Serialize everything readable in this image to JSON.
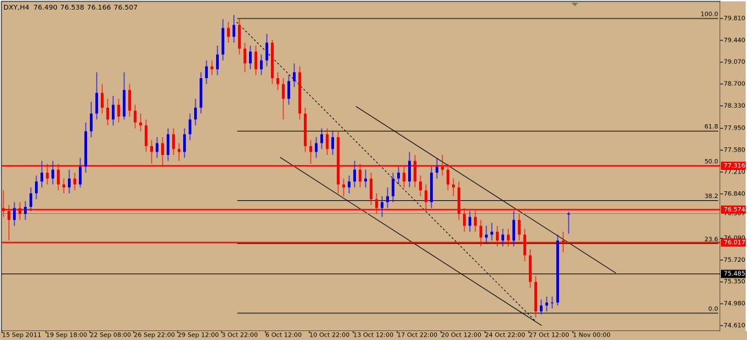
{
  "chart_data": {
    "type": "candlestick",
    "symbol": "DXY,H4",
    "last_bar_labels": [
      "76.490",
      "76.538",
      "76.166",
      "76.507"
    ],
    "background": "#d2b48c",
    "up_color": "#0000ff",
    "down_color": "#ff0000",
    "ylim": [
      74.517,
      80.065
    ],
    "yticks": [
      {
        "value": 79.81,
        "label": "79.810"
      },
      {
        "value": 79.44,
        "label": "79.440"
      },
      {
        "value": 79.07,
        "label": "79.070"
      },
      {
        "value": 78.7,
        "label": "78.700"
      },
      {
        "value": 78.33,
        "label": "78.330"
      },
      {
        "value": 77.95,
        "label": "77.950"
      },
      {
        "value": 77.58,
        "label": "77.580"
      },
      {
        "value": 77.21,
        "label": "77.210"
      },
      {
        "value": 76.84,
        "label": "76.840"
      },
      {
        "value": 76.09,
        "label": "76.090"
      },
      {
        "value": 75.72,
        "label": "75.720"
      },
      {
        "value": 75.35,
        "label": "75.350"
      },
      {
        "value": 74.98,
        "label": "74.980"
      },
      {
        "value": 74.61,
        "label": "74.610"
      }
    ],
    "x_labels": [
      "15 Sep 2011",
      "19 Sep 18:00",
      "22 Sep 08:00",
      "26 Sep 22:00",
      "29 Sep 12:00",
      "3 Oct 22:00",
      "6 Oct 12:00",
      "10 Oct 22:00",
      "13 Oct 12:00",
      "17 Oct 22:00",
      "20 Oct 12:00",
      "24 Oct 22:00",
      "27 Oct 12:00",
      "1 Nov 00:00"
    ],
    "candles": [
      [
        76.6,
        76.9,
        76.45,
        76.55
      ],
      [
        76.55,
        76.65,
        76.05,
        76.4
      ],
      [
        76.4,
        76.7,
        76.3,
        76.6
      ],
      [
        76.6,
        76.7,
        76.4,
        76.5
      ],
      [
        76.5,
        76.72,
        76.4,
        76.62
      ],
      [
        76.62,
        76.95,
        76.55,
        76.85
      ],
      [
        76.85,
        77.15,
        76.75,
        77.05
      ],
      [
        77.05,
        77.4,
        76.95,
        77.2
      ],
      [
        77.2,
        77.35,
        77.0,
        77.1
      ],
      [
        77.1,
        77.4,
        77.0,
        77.25
      ],
      [
        77.25,
        77.35,
        76.9,
        77.0
      ],
      [
        77.0,
        77.1,
        76.85,
        76.95
      ],
      [
        76.95,
        77.25,
        76.85,
        77.1
      ],
      [
        77.1,
        77.2,
        76.9,
        77.0
      ],
      [
        77.0,
        77.45,
        76.95,
        77.3
      ],
      [
        77.3,
        78.05,
        77.2,
        77.9
      ],
      [
        77.9,
        78.4,
        77.8,
        78.2
      ],
      [
        78.2,
        78.9,
        78.1,
        78.55
      ],
      [
        78.55,
        78.7,
        78.2,
        78.3
      ],
      [
        78.3,
        78.45,
        78.0,
        78.1
      ],
      [
        78.1,
        78.5,
        78.0,
        78.35
      ],
      [
        78.35,
        78.45,
        78.05,
        78.15
      ],
      [
        78.15,
        78.9,
        78.1,
        78.6
      ],
      [
        78.6,
        78.7,
        78.15,
        78.25
      ],
      [
        78.25,
        78.35,
        77.95,
        78.05
      ],
      [
        78.05,
        78.2,
        77.9,
        78.0
      ],
      [
        78.0,
        78.1,
        77.55,
        77.65
      ],
      [
        77.65,
        77.75,
        77.35,
        77.55
      ],
      [
        77.55,
        77.8,
        77.45,
        77.7
      ],
      [
        77.7,
        77.8,
        77.3,
        77.5
      ],
      [
        77.5,
        77.95,
        77.4,
        77.85
      ],
      [
        77.85,
        77.95,
        77.5,
        77.6
      ],
      [
        77.6,
        77.7,
        77.4,
        77.55
      ],
      [
        77.55,
        77.95,
        77.45,
        77.85
      ],
      [
        77.85,
        78.2,
        77.75,
        78.1
      ],
      [
        78.1,
        78.45,
        78.0,
        78.3
      ],
      [
        78.3,
        78.9,
        78.2,
        78.8
      ],
      [
        78.8,
        79.1,
        78.7,
        79.0
      ],
      [
        79.0,
        79.1,
        78.85,
        78.95
      ],
      [
        78.95,
        79.35,
        78.85,
        79.2
      ],
      [
        79.2,
        79.8,
        79.1,
        79.65
      ],
      [
        79.65,
        79.75,
        79.4,
        79.5
      ],
      [
        79.5,
        79.87,
        79.4,
        79.7
      ],
      [
        79.7,
        79.8,
        79.2,
        79.3
      ],
      [
        79.3,
        79.4,
        78.9,
        79.05
      ],
      [
        79.05,
        79.35,
        78.95,
        79.25
      ],
      [
        79.25,
        79.35,
        78.85,
        78.95
      ],
      [
        78.95,
        79.2,
        78.85,
        79.1
      ],
      [
        79.1,
        79.55,
        79.0,
        79.4
      ],
      [
        79.4,
        79.45,
        78.7,
        78.8
      ],
      [
        78.8,
        78.9,
        78.6,
        78.7
      ],
      [
        78.7,
        78.8,
        78.1,
        78.45
      ],
      [
        78.45,
        78.85,
        78.35,
        78.75
      ],
      [
        78.75,
        79.05,
        78.65,
        78.9
      ],
      [
        78.9,
        79.0,
        78.1,
        78.2
      ],
      [
        78.2,
        78.3,
        77.55,
        77.65
      ],
      [
        77.65,
        77.75,
        77.35,
        77.55
      ],
      [
        77.55,
        77.8,
        77.45,
        77.7
      ],
      [
        77.7,
        77.95,
        77.6,
        77.85
      ],
      [
        77.85,
        77.95,
        77.5,
        77.6
      ],
      [
        77.6,
        77.9,
        77.5,
        77.8
      ],
      [
        77.8,
        77.9,
        76.85,
        77.0
      ],
      [
        77.0,
        77.1,
        76.8,
        76.95
      ],
      [
        76.95,
        77.15,
        76.85,
        77.05
      ],
      [
        77.05,
        77.4,
        76.95,
        77.25
      ],
      [
        77.25,
        77.35,
        76.95,
        77.05
      ],
      [
        77.05,
        77.25,
        76.95,
        77.1
      ],
      [
        77.1,
        77.2,
        76.65,
        76.75
      ],
      [
        76.75,
        76.85,
        76.5,
        76.6
      ],
      [
        76.6,
        76.8,
        76.45,
        76.7
      ],
      [
        76.7,
        76.95,
        76.6,
        76.8
      ],
      [
        76.8,
        77.2,
        76.7,
        77.1
      ],
      [
        77.1,
        77.3,
        77.0,
        77.2
      ],
      [
        77.2,
        77.3,
        76.95,
        77.05
      ],
      [
        77.05,
        77.55,
        76.95,
        77.4
      ],
      [
        77.4,
        77.5,
        76.95,
        77.05
      ],
      [
        77.05,
        77.15,
        76.8,
        76.9
      ],
      [
        76.9,
        77.0,
        76.55,
        76.7
      ],
      [
        76.7,
        77.3,
        76.6,
        77.2
      ],
      [
        77.2,
        77.45,
        77.1,
        77.3
      ],
      [
        77.3,
        77.5,
        77.15,
        77.25
      ],
      [
        77.25,
        77.35,
        76.9,
        77.0
      ],
      [
        77.0,
        77.1,
        76.8,
        76.95
      ],
      [
        76.95,
        77.05,
        76.4,
        76.5
      ],
      [
        76.5,
        76.6,
        76.2,
        76.3
      ],
      [
        76.3,
        76.55,
        76.2,
        76.45
      ],
      [
        76.45,
        76.55,
        76.2,
        76.3
      ],
      [
        76.3,
        76.4,
        75.95,
        76.1
      ],
      [
        76.1,
        76.3,
        76.0,
        76.15
      ],
      [
        76.15,
        76.35,
        76.05,
        76.2
      ],
      [
        76.2,
        76.3,
        75.95,
        76.05
      ],
      [
        76.05,
        76.25,
        75.95,
        76.15
      ],
      [
        76.15,
        76.25,
        75.95,
        76.05
      ],
      [
        76.05,
        76.55,
        75.95,
        76.4
      ],
      [
        76.4,
        76.5,
        76.05,
        76.15
      ],
      [
        76.15,
        76.25,
        75.7,
        75.8
      ],
      [
        75.8,
        75.9,
        75.25,
        75.35
      ],
      [
        75.35,
        75.45,
        74.75,
        74.85
      ],
      [
        74.85,
        75.05,
        74.8,
        74.95
      ],
      [
        74.95,
        75.1,
        74.85,
        75.0
      ],
      [
        75.0,
        75.1,
        74.9,
        75.0
      ],
      [
        75.0,
        76.15,
        74.95,
        76.05
      ],
      [
        76.05,
        76.2,
        75.85,
        76.0
      ],
      [
        76.49,
        76.538,
        76.166,
        76.507
      ]
    ],
    "levels": [
      {
        "value": 77.316,
        "label": "77.316",
        "color": "#ff0000"
      },
      {
        "value": 76.574,
        "label": "76.574",
        "color": "#ff0000"
      },
      {
        "value": 76.017,
        "label": "76.017",
        "color": "#ff0000"
      },
      {
        "value": 75.485,
        "label": "75.485",
        "color": "#000000"
      }
    ],
    "current_price": {
      "value": 76.507,
      "label": "76.507"
    },
    "fibonacci": {
      "start": 42.6,
      "high": 79.81,
      "low": 74.82,
      "levels": [
        {
          "value": 100,
          "label": "100.0"
        },
        {
          "value": 61.8,
          "label": "61.8"
        },
        {
          "value": 50,
          "label": "50.0"
        },
        {
          "value": 38.2,
          "label": "38.2"
        },
        {
          "value": 23.6,
          "label": "23.6"
        },
        {
          "value": 0,
          "label": "0.0"
        }
      ]
    },
    "trendlines": [
      {
        "points": [
          [
            64.25,
            78.32
          ],
          [
            111.6,
            75.5
          ]
        ],
        "dashed": false
      },
      {
        "points": [
          [
            50.4,
            77.46
          ],
          [
            98.1,
            74.61
          ]
        ],
        "dashed": false
      },
      {
        "points": [
          [
            42.5,
            79.75
          ],
          [
            96.9,
            74.69
          ]
        ],
        "dashed": true
      }
    ]
  }
}
